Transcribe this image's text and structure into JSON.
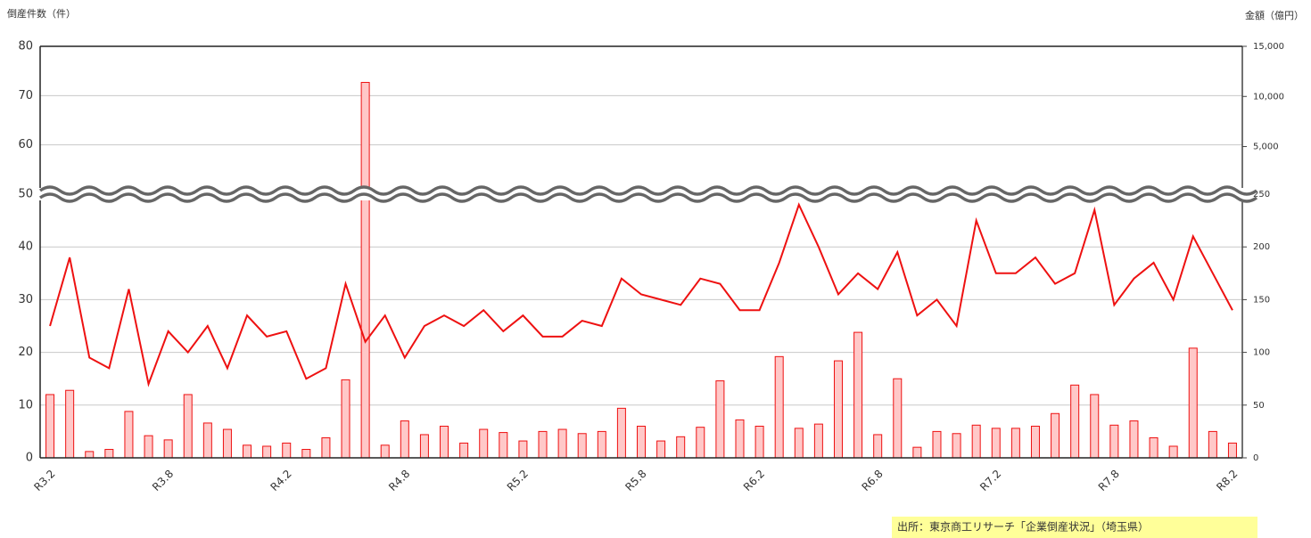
{
  "chart_data": {
    "type": "bar_line",
    "y_label": "倒産件数（件）",
    "y2_label": "金額（億円）",
    "source": "出所：東京商工リサーチ「企業倒産状況」（埼玉県）",
    "categories": [
      "R3.2",
      null,
      null,
      null,
      null,
      null,
      "R3.8",
      null,
      null,
      null,
      null,
      null,
      "R4.2",
      null,
      null,
      null,
      null,
      null,
      "R4.8",
      null,
      null,
      null,
      null,
      null,
      "R5.2",
      null,
      null,
      null,
      null,
      null,
      "R5.8",
      null,
      null,
      null,
      null,
      null,
      "R6.2",
      null,
      null,
      null,
      null,
      null,
      "R6.8",
      null,
      null,
      null,
      null,
      null,
      "R7.2",
      null,
      null,
      null,
      null,
      null,
      "R7.8",
      null,
      null,
      null,
      null,
      null,
      "R8.2"
    ],
    "series": [
      {
        "type": "line",
        "color": "#ee1111",
        "axis": "y",
        "values": [
          25,
          38,
          19,
          17,
          32,
          14,
          24,
          20,
          25,
          17,
          27,
          23,
          24,
          15,
          17,
          33,
          22,
          27,
          19,
          25,
          27,
          25,
          28,
          24,
          27,
          23,
          23,
          26,
          25,
          34,
          31,
          30,
          29,
          34,
          33,
          28,
          28,
          37,
          48,
          40,
          31,
          35,
          32,
          39,
          27,
          30,
          25,
          45,
          35,
          35,
          38,
          33,
          35,
          47,
          29,
          34,
          37,
          30,
          42,
          35,
          28
        ]
      },
      {
        "type": "bar",
        "color": "#ffc8c8",
        "edge_color": "#ee1111",
        "axis": "y2",
        "values": [
          60,
          64,
          6,
          8,
          44,
          21,
          17,
          60,
          33,
          27,
          12,
          11,
          14,
          8,
          19,
          74,
          11400,
          12,
          35,
          22,
          30,
          14,
          27,
          24,
          16,
          25,
          27,
          23,
          25,
          47,
          30,
          16,
          20,
          29,
          73,
          36,
          30,
          96,
          28,
          32,
          92,
          119,
          22,
          75,
          10,
          25,
          23,
          31,
          28,
          28,
          30,
          42,
          69,
          60,
          31,
          35,
          19,
          11,
          104,
          25,
          14
        ]
      }
    ],
    "ylim": [
      0,
      80
    ],
    "ybreak": 50,
    "yticks": [
      0,
      10,
      20,
      30,
      40,
      50,
      60,
      70,
      80
    ],
    "y2lim": [
      0,
      15000
    ],
    "y2break": 250,
    "y2ticks": [
      0,
      50,
      100,
      150,
      200,
      250,
      {
        "value": 5000,
        "label": "5,000"
      },
      {
        "value": 10000,
        "label": "10,000"
      },
      {
        "value": 15000,
        "label": "15,000"
      }
    ],
    "grid": true
  }
}
